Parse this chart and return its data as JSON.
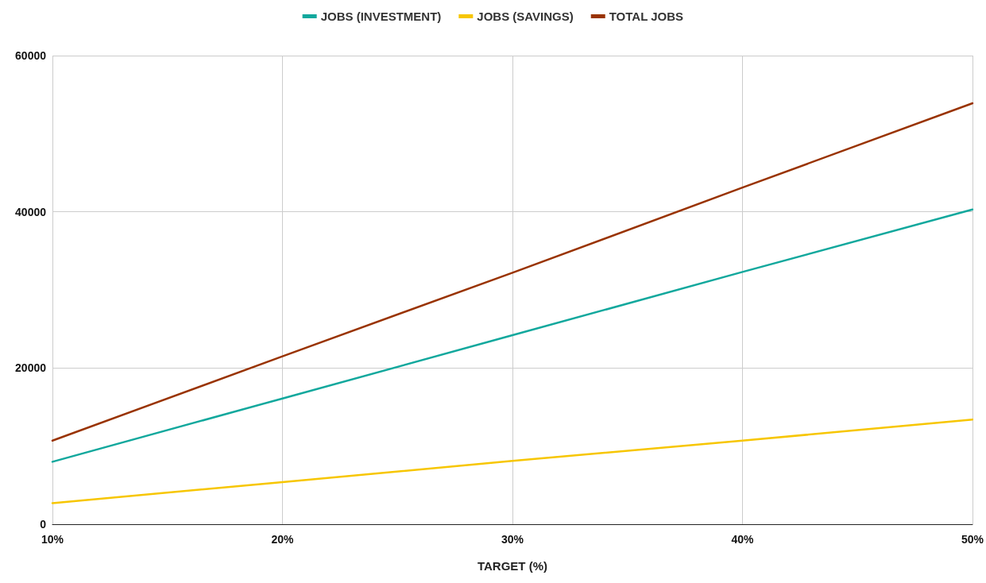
{
  "chart_data": {
    "type": "line",
    "xlabel": "TARGET (%)",
    "x": [
      10,
      20,
      30,
      40,
      50
    ],
    "series": [
      {
        "name": "JOBS (INVESTMENT)",
        "color": "#12a89d",
        "values": [
          8000,
          16100,
          24200,
          32300,
          40300
        ]
      },
      {
        "name": "JOBS (SAVINGS)",
        "color": "#f7c600",
        "values": [
          2700,
          5400,
          8100,
          10700,
          13400
        ]
      },
      {
        "name": "TOTAL JOBS",
        "color": "#993300",
        "values": [
          10700,
          21500,
          32200,
          43100,
          53900
        ]
      }
    ],
    "xlim": [
      10,
      50
    ],
    "xticks": [
      {
        "value": 10,
        "label": "10%"
      },
      {
        "value": 20,
        "label": "20%"
      },
      {
        "value": 30,
        "label": "30%"
      },
      {
        "value": 40,
        "label": "40%"
      },
      {
        "value": 50,
        "label": "50%"
      }
    ],
    "ylim": [
      0,
      60000
    ],
    "yticks": [
      0,
      20000,
      40000,
      60000
    ],
    "grid": true,
    "legend": "top",
    "marker": "none",
    "line_style": "solid"
  }
}
